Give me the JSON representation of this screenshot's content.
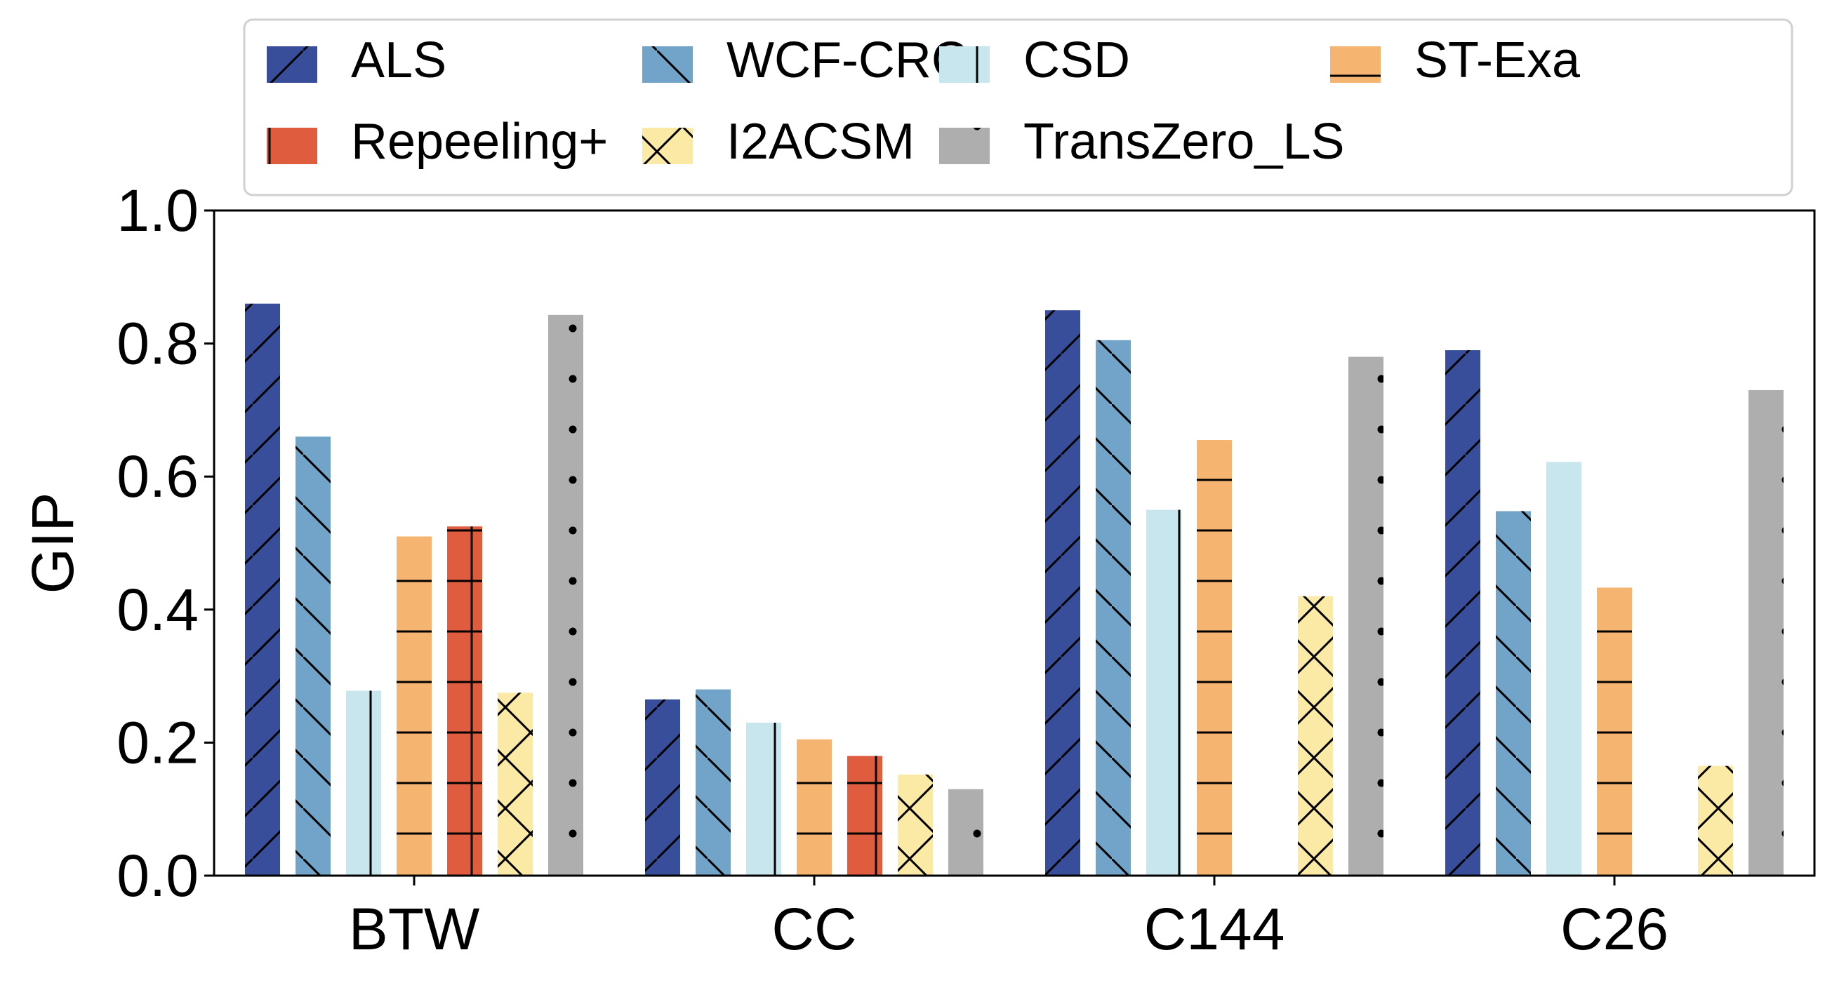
{
  "chart_data": {
    "type": "bar",
    "title": "",
    "xlabel": "",
    "ylabel": "GIP",
    "ylim": [
      0,
      1.0
    ],
    "yticks": [
      "0.0",
      "0.2",
      "0.4",
      "0.6",
      "0.8",
      "1.0"
    ],
    "grid": false,
    "legend_position": "top",
    "categories": [
      "BTW",
      "CC",
      "C144",
      "C26"
    ],
    "series": [
      {
        "name": "ALS",
        "color": "#384e9b",
        "hatch": "slash",
        "values": [
          0.86,
          0.265,
          0.85,
          0.79
        ]
      },
      {
        "name": "WCF-CRC",
        "color": "#71a4c8",
        "hatch": "backslash",
        "values": [
          0.66,
          0.28,
          0.805,
          0.548
        ]
      },
      {
        "name": "CSD",
        "color": "#c8e6ee",
        "hatch": "vertical",
        "values": [
          0.278,
          0.23,
          0.55,
          0.622
        ]
      },
      {
        "name": "ST-Exa",
        "color": "#f5b470",
        "hatch": "horizontal",
        "values": [
          0.51,
          0.205,
          0.655,
          0.433
        ]
      },
      {
        "name": "Repeeling+",
        "color": "#e05c3f",
        "hatch": "plus",
        "values": [
          0.525,
          0.18,
          null,
          null
        ]
      },
      {
        "name": "I2ACSM",
        "color": "#fbe9a6",
        "hatch": "cross",
        "values": [
          0.275,
          0.152,
          0.42,
          0.165
        ]
      },
      {
        "name": "TransZero_LS",
        "color": "#aeaeae",
        "hatch": "dots",
        "values": [
          0.843,
          0.13,
          0.78,
          0.73
        ]
      }
    ]
  }
}
